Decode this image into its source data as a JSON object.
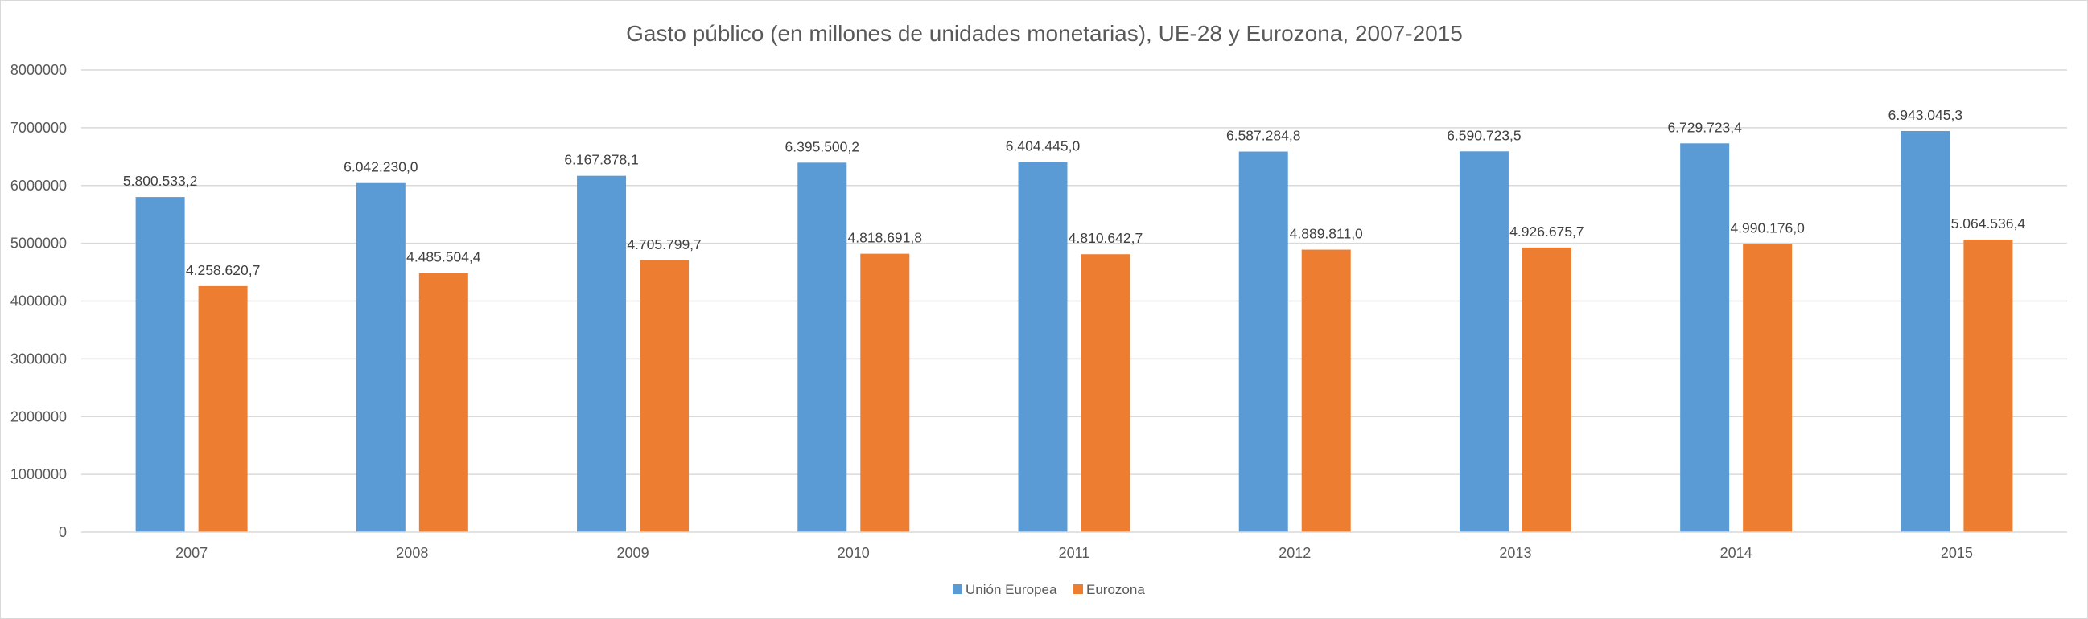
{
  "chart_data": {
    "type": "bar",
    "title": "Gasto público (en millones de unidades monetarias), UE-28 y Eurozona, 2007-2015",
    "xlabel": "",
    "ylabel": "",
    "categories": [
      "2007",
      "2008",
      "2009",
      "2010",
      "2011",
      "2012",
      "2013",
      "2014",
      "2015"
    ],
    "ylim": [
      0,
      8000000
    ],
    "yticks": [
      0,
      1000000,
      2000000,
      3000000,
      4000000,
      5000000,
      6000000,
      7000000,
      8000000
    ],
    "ytick_labels": [
      "0",
      "1000000",
      "2000000",
      "3000000",
      "4000000",
      "5000000",
      "6000000",
      "7000000",
      "8000000"
    ],
    "grid": true,
    "legend_position": "bottom",
    "series": [
      {
        "name": "Unión Europea",
        "color": "#5b9bd5",
        "values": [
          5800533.2,
          6042230.0,
          6167878.1,
          6395500.2,
          6404445.0,
          6587284.8,
          6590723.5,
          6729723.4,
          6943045.3
        ],
        "labels": [
          "5.800.533,2",
          "6.042.230,0",
          "6.167.878,1",
          "6.395.500,2",
          "6.404.445,0",
          "6.587.284,8",
          "6.590.723,5",
          "6.729.723,4",
          "6.943.045,3"
        ]
      },
      {
        "name": "Eurozona",
        "color": "#ed7d31",
        "values": [
          4258620.7,
          4485504.4,
          4705799.7,
          4818691.8,
          4810642.7,
          4889811.0,
          4926675.7,
          4990176.0,
          5064536.4
        ],
        "labels": [
          "4.258.620,7",
          "4.485.504,4",
          "4.705.799,7",
          "4.818.691,8",
          "4.810.642,7",
          "4.889.811,0",
          "4.926.675,7",
          "4.990.176,0",
          "5.064.536,4"
        ]
      }
    ]
  }
}
